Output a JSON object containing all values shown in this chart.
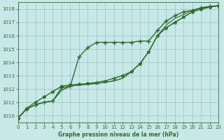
{
  "title": "Graphe pression niveau de la mer (hPa)",
  "bg_color": "#c8e8e8",
  "grid_color": "#9ec8c8",
  "line_color": "#2d6e2d",
  "marker_color": "#2d6e2d",
  "xlim": [
    0,
    23
  ],
  "ylim": [
    1009.5,
    1018.5
  ],
  "xticks": [
    0,
    1,
    2,
    3,
    4,
    5,
    6,
    7,
    8,
    9,
    10,
    11,
    12,
    13,
    14,
    15,
    16,
    17,
    18,
    19,
    20,
    21,
    22,
    23
  ],
  "yticks": [
    1010,
    1011,
    1012,
    1013,
    1014,
    1015,
    1016,
    1017,
    1018
  ],
  "series": [
    {
      "data": [
        1009.8,
        1010.5,
        1010.8,
        1011.0,
        1011.1,
        1012.1,
        1012.2,
        1014.4,
        1015.1,
        1015.5,
        1015.5,
        1015.5,
        1015.5,
        1015.5,
        1015.6,
        1015.6,
        1016.4,
        1017.1,
        1017.5,
        1017.8,
        1017.9,
        1018.1,
        1018.2,
        1018.25
      ],
      "lw": 1.0,
      "marker": "+",
      "ms": 4,
      "mew": 1.0
    },
    {
      "data": [
        1009.8,
        1010.5,
        1010.8,
        1011.0,
        1011.1,
        1011.9,
        1012.2,
        1012.3,
        1012.35,
        1012.4,
        1012.5,
        1012.6,
        1012.8,
        1013.3,
        1013.9,
        1014.8,
        1016.0,
        1016.8,
        1017.3,
        1017.6,
        1017.9,
        1018.1,
        1018.2,
        1018.25
      ],
      "lw": 0.8,
      "marker": null,
      "ms": 0,
      "mew": 0
    },
    {
      "data": [
        1009.8,
        1010.5,
        1010.8,
        1011.0,
        1011.1,
        1011.9,
        1012.2,
        1012.3,
        1012.35,
        1012.4,
        1012.5,
        1012.6,
        1012.8,
        1013.3,
        1013.9,
        1014.8,
        1016.0,
        1016.6,
        1017.0,
        1017.4,
        1017.8,
        1018.0,
        1018.15,
        1018.25
      ],
      "lw": 0.8,
      "marker": null,
      "ms": 0,
      "mew": 0
    },
    {
      "data": [
        1009.8,
        1010.55,
        1011.0,
        1011.4,
        1011.8,
        1012.2,
        1012.3,
        1012.35,
        1012.4,
        1012.5,
        1012.6,
        1012.8,
        1013.0,
        1013.3,
        1013.9,
        1014.8,
        1016.0,
        1016.6,
        1017.0,
        1017.4,
        1017.8,
        1018.0,
        1018.15,
        1018.25
      ],
      "lw": 1.0,
      "marker": "*",
      "ms": 3.5,
      "mew": 0.8
    }
  ],
  "title_fontsize": 5.5,
  "tick_fontsize": 5
}
